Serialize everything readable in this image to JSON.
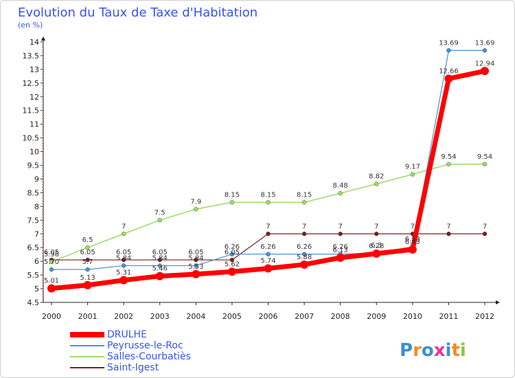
{
  "chart_data": {
    "type": "line",
    "title": "Evolution du Taux de Taxe d'Habitation",
    "subtitle": "(en %)",
    "x": [
      "2000",
      "2001",
      "2002",
      "2003",
      "2004",
      "2005",
      "2006",
      "2007",
      "2008",
      "2009",
      "2010",
      "2011",
      "2012"
    ],
    "ylim": [
      4.5,
      14
    ],
    "y_ticks": [
      "4.5",
      "5",
      "5.5",
      "6",
      "6.5",
      "7",
      "7.5",
      "8",
      "8.5",
      "9",
      "9.5",
      "10",
      "10.5",
      "11",
      "11.5",
      "12",
      "12.5",
      "13",
      "13.5",
      "14"
    ],
    "grid": false,
    "legend_position": "bottom-left",
    "series": [
      {
        "name": "DRULHE",
        "color": "#ff0000",
        "values": [
          5.01,
          5.13,
          5.31,
          5.46,
          5.53,
          5.62,
          5.74,
          5.88,
          6.13,
          6.28,
          6.43,
          12.66,
          12.94
        ],
        "labels": [
          "5.01",
          "5.13",
          "5.31",
          "5.46",
          "5.53",
          "5.62",
          "5.74",
          "5.88",
          "6.13",
          "6.28",
          "6.43",
          "12.66",
          "12.94"
        ]
      },
      {
        "name": "Peyrusse-le-Roc",
        "color": "#4a90d9",
        "values": [
          5.7,
          5.7,
          5.84,
          5.84,
          5.84,
          6.26,
          6.26,
          6.26,
          6.26,
          6.3,
          6.53,
          13.69,
          13.69
        ],
        "labels": [
          "5.70",
          "5.7",
          "5.84",
          "5.84",
          "5.84",
          "6.26",
          "6.26",
          "6.26",
          "6.26",
          "6.3",
          "6.53",
          "13.69",
          "13.69"
        ]
      },
      {
        "name": "Salles-Courbatiès",
        "color": "#99dd66",
        "values": [
          5.98,
          6.5,
          7,
          7.5,
          7.9,
          8.15,
          8.15,
          8.15,
          8.48,
          8.82,
          9.17,
          9.54,
          9.54
        ],
        "labels": [
          "5.98",
          "6.5",
          "7",
          "7.5",
          "7.9",
          "8.15",
          "8.15",
          "8.15",
          "8.48",
          "8.82",
          "9.17",
          "9.54",
          "9.54"
        ]
      },
      {
        "name": "Saint-Igest",
        "color": "#7a1f1f",
        "values": [
          6.05,
          6.05,
          6.05,
          6.05,
          6.05,
          6.05,
          7,
          7,
          7,
          7,
          7,
          7,
          7
        ],
        "labels": [
          "6.05",
          "6.05",
          "6.05",
          "6.05",
          "6.05",
          "6.05",
          "7",
          "7",
          "7",
          "7",
          "7",
          "7",
          "7"
        ]
      }
    ]
  },
  "logo": {
    "text": "Proxiti",
    "letter_colors": [
      "#3a8fd0",
      "#f28c1e",
      "#3a8fd0",
      "#ee3399",
      "#3a8fd0",
      "#f28c1e",
      "#8bc34a"
    ]
  }
}
